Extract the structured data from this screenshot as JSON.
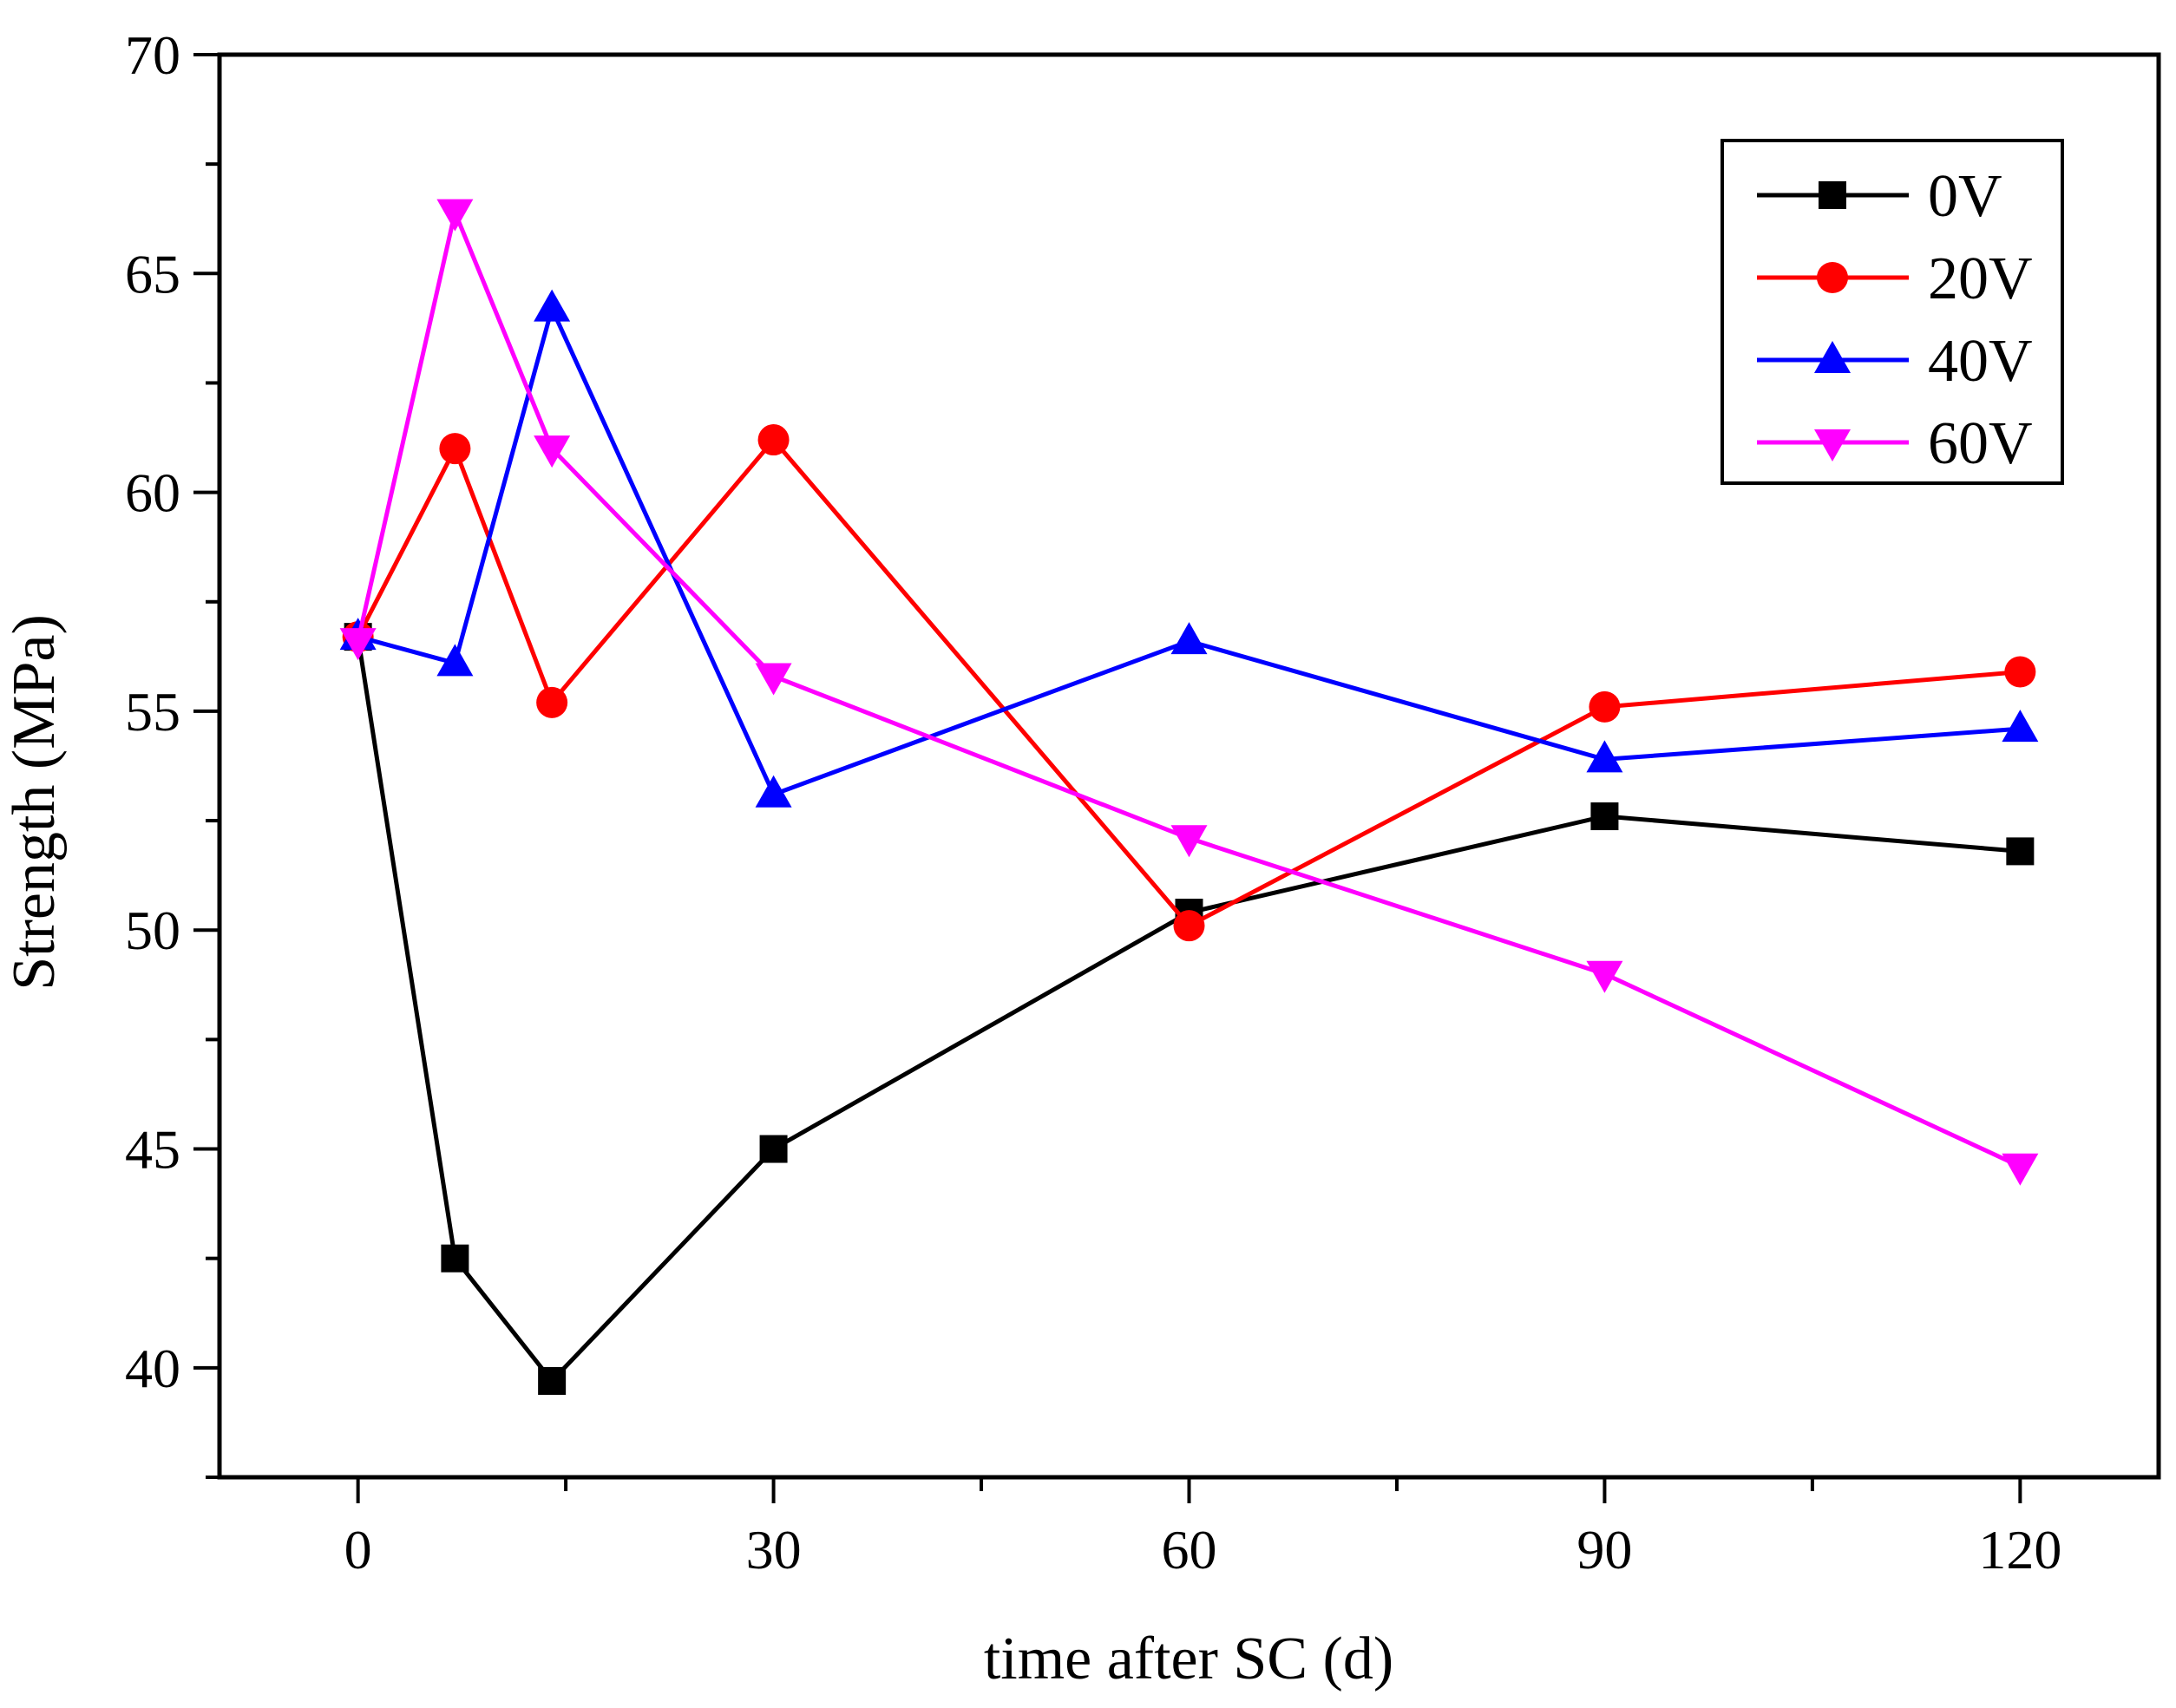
{
  "chart_data": {
    "type": "line",
    "title": "",
    "xlabel": "time after SC (d)",
    "ylabel": "Strength (MPa)",
    "xlim": [
      -10,
      130
    ],
    "ylim": [
      37.5,
      70
    ],
    "xticks": [
      0,
      30,
      60,
      90,
      120
    ],
    "yticks": [
      40,
      45,
      50,
      55,
      60,
      65,
      70
    ],
    "grid": false,
    "legend_position": "top-right",
    "x": [
      0,
      7,
      14,
      30,
      60,
      90,
      120
    ],
    "series": [
      {
        "name": "0V",
        "color": "#000000",
        "marker": "square",
        "values": [
          56.7,
          42.5,
          39.7,
          45.0,
          50.4,
          52.6,
          51.8
        ]
      },
      {
        "name": "20V",
        "color": "#ff0000",
        "marker": "circle",
        "values": [
          56.7,
          61.0,
          55.2,
          61.2,
          50.1,
          55.1,
          55.9
        ]
      },
      {
        "name": "40V",
        "color": "#0000ff",
        "marker": "triangle-up",
        "values": [
          56.7,
          56.1,
          64.2,
          53.1,
          56.6,
          53.9,
          54.6
        ]
      },
      {
        "name": "60V",
        "color": "#ff00ff",
        "marker": "triangle-down",
        "values": [
          56.6,
          66.4,
          61.0,
          55.8,
          52.1,
          49.0,
          44.6
        ]
      }
    ]
  }
}
